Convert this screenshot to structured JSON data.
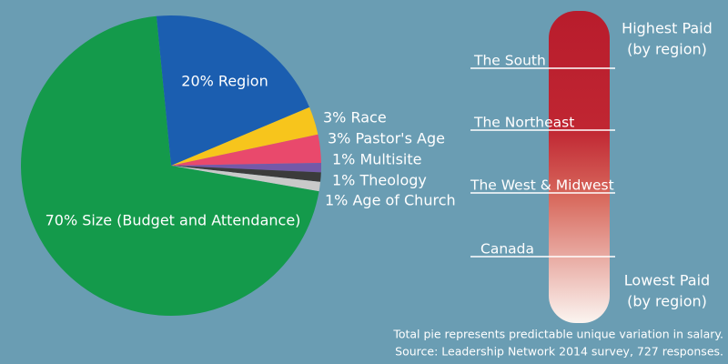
{
  "chart_data": {
    "type": "pie",
    "values": [
      20,
      3,
      3,
      1,
      1,
      1,
      70
    ],
    "value_labels": [
      "20% Region",
      "3% Race",
      "3% Pastor's Age",
      "1% Multisite",
      "1% Theology",
      "1% Age of Church",
      "70% Size (Budget and Attendance)"
    ],
    "colors": [
      "#1b5eb0",
      "#f7c51c",
      "#e9496c",
      "#7459a8",
      "#3b3b3b",
      "#c9c9c9",
      "#149a4b"
    ]
  },
  "region_scale": {
    "top_label": [
      "Highest Paid",
      "(by region)"
    ],
    "bottom_label": [
      "Lowest Paid",
      "(by region)"
    ],
    "regions": [
      "The South",
      "The Northeast",
      "The West & Midwest",
      "Canada"
    ]
  },
  "footnote": [
    "Total pie represents predictable unique variation in salary.",
    "Source: Leadership Network 2014 survey, 727 responses."
  ]
}
